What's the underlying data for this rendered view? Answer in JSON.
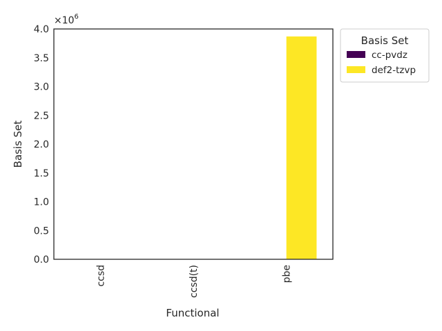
{
  "chart_data": {
    "type": "bar",
    "categories": [
      "ccsd",
      "ccsd(t)",
      "pbe"
    ],
    "series": [
      {
        "name": "cc-pvdz",
        "values": [
          0,
          0,
          0
        ],
        "color": "#440154"
      },
      {
        "name": "def2-tzvp",
        "values": [
          0,
          0,
          3.87
        ],
        "color": "#fde725"
      }
    ],
    "xlabel": "Functional",
    "ylabel": "Basis Set",
    "ylim": [
      0,
      4.0
    ],
    "y_ticks": [
      0.0,
      0.5,
      1.0,
      1.5,
      2.0,
      2.5,
      3.0,
      3.5,
      4.0
    ],
    "y_tick_labels": [
      "0.0",
      "0.5",
      "1.0",
      "1.5",
      "2.0",
      "2.5",
      "3.0",
      "3.5",
      "4.0"
    ],
    "y_multiplier_base": "×10",
    "y_multiplier_exp": "6",
    "legend": {
      "title": "Basis Set",
      "placement": "outside-top-right"
    },
    "grid": false
  }
}
